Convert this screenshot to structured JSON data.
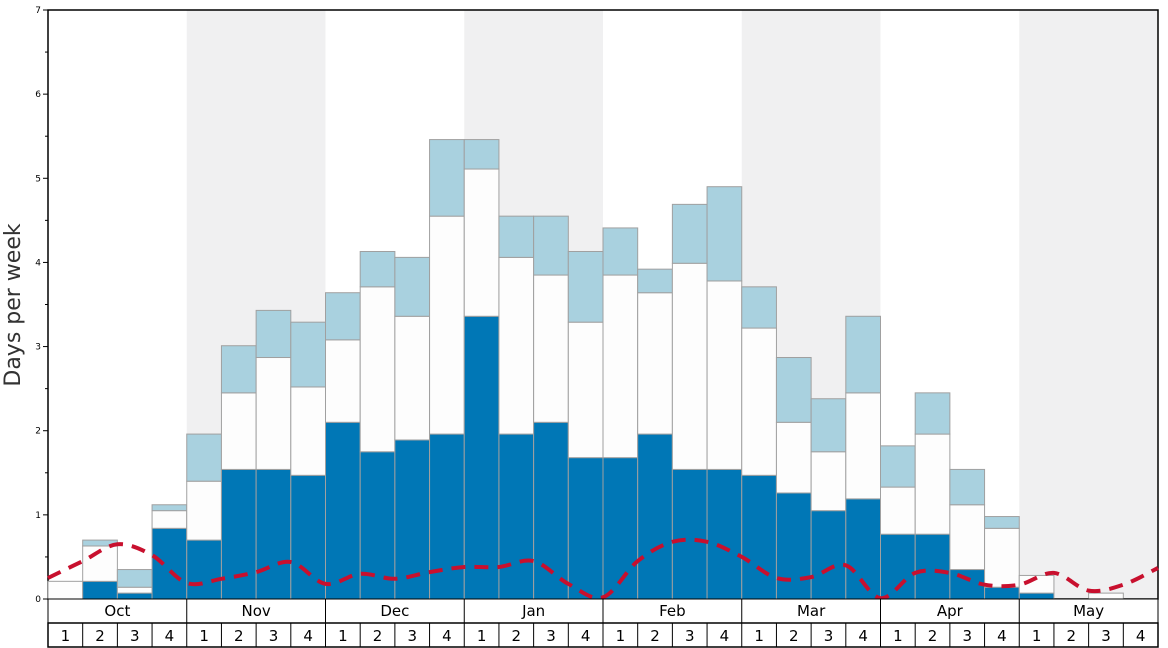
{
  "chart_data": {
    "type": "bar",
    "stacked": true,
    "ylabel": "Days per week",
    "ylim": [
      0,
      7
    ],
    "y_ticks": [
      "0",
      "1",
      "2",
      "3",
      "4",
      "5",
      "6",
      "7"
    ],
    "months": [
      "Oct",
      "Nov",
      "Dec",
      "Jan",
      "Feb",
      "Mar",
      "Apr",
      "May"
    ],
    "week_labels": [
      "1",
      "2",
      "3",
      "4"
    ],
    "shaded_months": [
      "Nov",
      "Jan",
      "Mar",
      "May"
    ],
    "series": [
      {
        "color": "#0077b6",
        "values": [
          0,
          0.21,
          0.07,
          0.84,
          0.7,
          1.54,
          1.54,
          1.47,
          2.1,
          1.75,
          1.89,
          1.96,
          3.36,
          1.96,
          2.1,
          1.68,
          1.68,
          1.96,
          1.54,
          1.54,
          1.47,
          1.26,
          1.05,
          1.19,
          0.77,
          0.77,
          0.35,
          0.14,
          0.07,
          0,
          0,
          0
        ]
      },
      {
        "color": "#fdfdfd",
        "values": [
          0.21,
          0.42,
          0.07,
          0.21,
          0.7,
          0.91,
          1.33,
          1.05,
          0.98,
          1.96,
          1.47,
          2.59,
          1.75,
          2.1,
          1.75,
          1.61,
          2.17,
          1.68,
          2.45,
          2.24,
          1.75,
          0.84,
          0.7,
          1.26,
          0.56,
          1.19,
          0.77,
          0.7,
          0.21,
          0,
          0.07,
          0
        ]
      },
      {
        "color": "#a9d1df",
        "values": [
          0,
          0.07,
          0.21,
          0.07,
          0.56,
          0.56,
          0.56,
          0.77,
          0.56,
          0.42,
          0.7,
          0.91,
          0.35,
          0.49,
          0.7,
          0.84,
          0.56,
          0.28,
          0.7,
          1.12,
          0.49,
          0.77,
          0.63,
          0.91,
          0.49,
          0.49,
          0.42,
          0.14,
          0,
          0,
          0,
          0
        ]
      }
    ],
    "average_line": {
      "color": "#c8102e",
      "values": [
        0.25,
        0.45,
        0.65,
        0.52,
        0.19,
        0.24,
        0.32,
        0.44,
        0.18,
        0.3,
        0.24,
        0.32,
        0.38,
        0.38,
        0.45,
        0.18,
        0.02,
        0.45,
        0.68,
        0.68,
        0.5,
        0.25,
        0.26,
        0.4,
        0.01,
        0.31,
        0.31,
        0.17,
        0.17,
        0.31,
        0.1,
        0.17,
        0.37
      ]
    }
  }
}
